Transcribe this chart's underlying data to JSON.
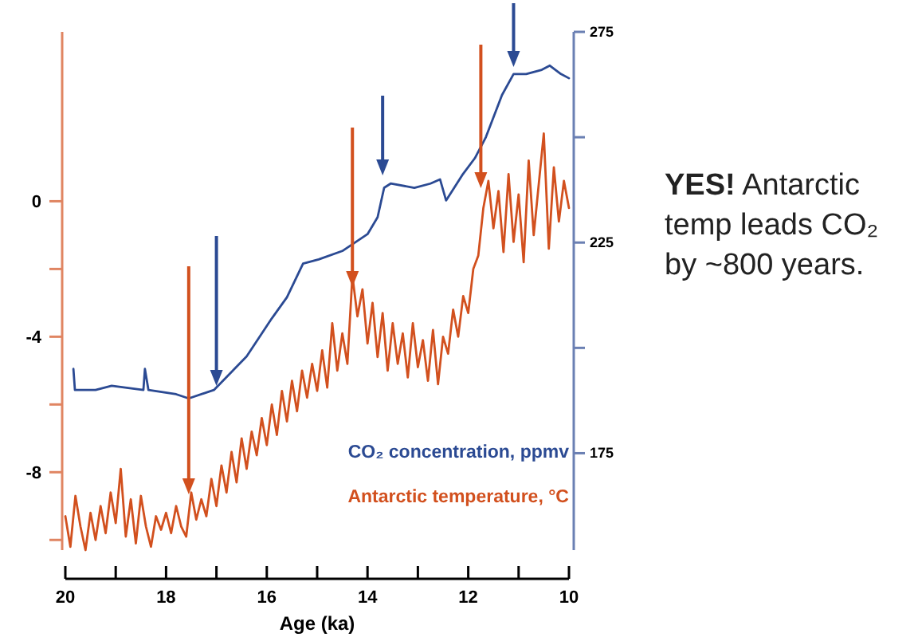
{
  "chart_data": {
    "type": "line",
    "xlabel": "Age (ka)",
    "xlim": [
      20,
      10
    ],
    "xticks": [
      20,
      {
        "value": 19,
        "label": null
      },
      18,
      {
        "value": 17,
        "label": null
      },
      16,
      {
        "value": 15,
        "label": null
      },
      14,
      {
        "value": 13,
        "label": null
      },
      12,
      {
        "value": 11,
        "label": null
      },
      10
    ],
    "ylim": [
      -10.3,
      5
    ],
    "yticks": [
      {
        "value": -10,
        "label": null
      },
      -8,
      {
        "value": -6,
        "label": null
      },
      -4,
      {
        "value": -2,
        "label": null
      },
      0
    ],
    "y2lim": [
      152,
      275
    ],
    "y2ticks": [
      175,
      {
        "value": 200,
        "label": null
      },
      225,
      {
        "value": 250,
        "label": null
      },
      275
    ],
    "legend": "bottom right",
    "grid": false,
    "marker": "none",
    "line_style": "solid",
    "annotations": [
      "YES! Antarctic temp leads CO₂ by ~800 years."
    ],
    "series": [
      {
        "name": "CO₂ concentration, ppmv",
        "color": "#2b4a93",
        "axis": "y2",
        "x": [
          19.84,
          19.81,
          19.4,
          19.08,
          18.45,
          18.42,
          18.35,
          17.8,
          17.55,
          17.05,
          16.4,
          15.9,
          15.6,
          15.28,
          14.97,
          14.5,
          14.0,
          13.8,
          13.67,
          13.54,
          13.07,
          12.75,
          12.56,
          12.44,
          12.12,
          11.87,
          11.65,
          11.33,
          11.1,
          10.85,
          10.54,
          10.38,
          10.16,
          10.0
        ],
        "values": [
          195,
          190,
          190,
          191,
          190,
          195,
          190,
          189,
          188,
          190,
          198,
          207,
          212,
          220,
          221,
          223,
          227,
          231,
          238,
          239,
          238,
          239,
          240,
          235,
          241,
          245,
          250,
          260,
          265,
          265,
          266,
          267,
          265,
          264
        ]
      },
      {
        "name": "Antarctic temperature, °C",
        "color": "#d2501e",
        "axis": "y",
        "x": [
          20.0,
          19.9,
          19.8,
          19.7,
          19.6,
          19.5,
          19.4,
          19.3,
          19.2,
          19.1,
          19.0,
          18.9,
          18.8,
          18.7,
          18.6,
          18.5,
          18.4,
          18.3,
          18.2,
          18.1,
          18.0,
          17.9,
          17.8,
          17.7,
          17.6,
          17.5,
          17.4,
          17.3,
          17.2,
          17.1,
          17.0,
          16.9,
          16.8,
          16.7,
          16.6,
          16.5,
          16.4,
          16.3,
          16.2,
          16.1,
          16.0,
          15.9,
          15.8,
          15.7,
          15.6,
          15.5,
          15.4,
          15.3,
          15.2,
          15.1,
          15.0,
          14.9,
          14.8,
          14.7,
          14.6,
          14.5,
          14.4,
          14.3,
          14.2,
          14.1,
          14.0,
          13.9,
          13.8,
          13.7,
          13.6,
          13.5,
          13.4,
          13.3,
          13.2,
          13.1,
          13.0,
          12.9,
          12.8,
          12.7,
          12.6,
          12.5,
          12.4,
          12.3,
          12.2,
          12.1,
          12.0,
          11.9,
          11.8,
          11.7,
          11.6,
          11.5,
          11.4,
          11.3,
          11.2,
          11.1,
          11.0,
          10.9,
          10.8,
          10.7,
          10.6,
          10.5,
          10.4,
          10.3,
          10.2,
          10.1,
          10.0
        ],
        "values": [
          -9.3,
          -10.2,
          -8.7,
          -9.6,
          -10.3,
          -9.2,
          -10.0,
          -9.0,
          -9.8,
          -8.6,
          -9.5,
          -7.9,
          -9.9,
          -8.8,
          -10.1,
          -8.7,
          -9.6,
          -10.2,
          -9.3,
          -9.7,
          -9.2,
          -9.8,
          -9.0,
          -9.6,
          -9.9,
          -8.6,
          -9.4,
          -8.8,
          -9.3,
          -8.2,
          -9.0,
          -7.8,
          -8.6,
          -7.4,
          -8.3,
          -7.0,
          -7.9,
          -6.8,
          -7.5,
          -6.4,
          -7.2,
          -6.0,
          -6.9,
          -5.6,
          -6.5,
          -5.3,
          -6.2,
          -5.0,
          -5.8,
          -4.8,
          -5.6,
          -4.4,
          -5.5,
          -3.6,
          -5.0,
          -3.9,
          -4.8,
          -2.2,
          -3.4,
          -2.6,
          -4.2,
          -3.0,
          -4.6,
          -3.3,
          -5.0,
          -3.6,
          -4.8,
          -3.9,
          -5.2,
          -3.6,
          -4.9,
          -4.1,
          -5.3,
          -3.8,
          -5.4,
          -4.0,
          -4.5,
          -3.2,
          -4.0,
          -2.8,
          -3.3,
          -2.0,
          -1.6,
          -0.2,
          0.6,
          -0.8,
          0.3,
          -1.5,
          0.8,
          -1.2,
          0.2,
          -1.8,
          1.2,
          -1.0,
          0.5,
          2.0,
          -1.4,
          1.0,
          -0.6,
          0.6,
          -0.2
        ]
      }
    ]
  }
}
